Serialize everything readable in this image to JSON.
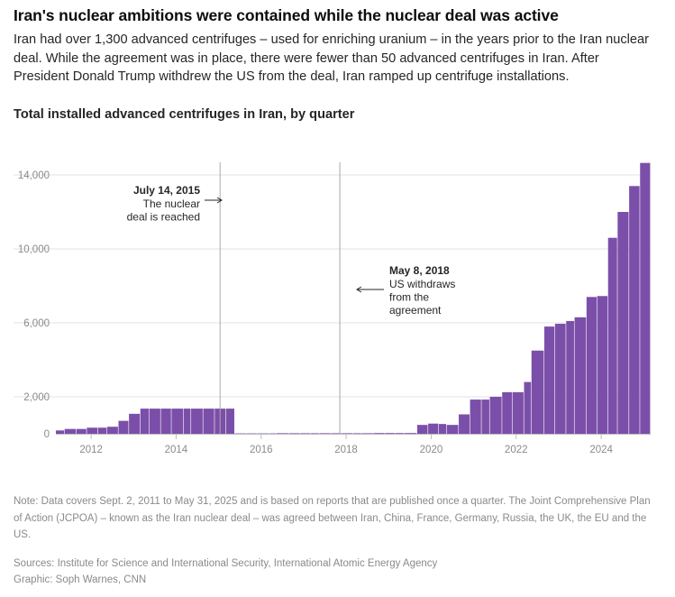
{
  "headline": "Iran's nuclear ambitions were contained while the nuclear deal was active",
  "dek": "Iran had over 1,300 advanced centrifuges – used for enriching uranium – in the years prior to the Iran nuclear deal. While the agreement was in place, there were fewer than 50 advanced centrifuges in Iran. After President Donald Trump withdrew the US from the deal, Iran ramped up centrifuge installations.",
  "chart_title": "Total installed advanced centrifuges in Iran, by quarter",
  "chart_data": {
    "type": "bar",
    "title": "Total installed advanced centrifuges in Iran, by quarter",
    "xlabel": "",
    "ylabel": "",
    "x_ticks": [
      "2012",
      "2014",
      "2016",
      "2018",
      "2020",
      "2022",
      "2024"
    ],
    "y_ticks": [
      "0",
      "2,000",
      "6,000",
      "10,000",
      "14,000"
    ],
    "ylim": [
      0,
      14500
    ],
    "grid": "horizontal",
    "bar_color": "#7b4fa9",
    "series": [
      {
        "x": [
          "2011-09-02",
          "2011-11-16",
          "2012-02-24",
          "2012-05-25",
          "2012-08-30",
          "2012-11-16",
          "2013-02-21",
          "2013-05-22",
          "2013-08-28",
          "2013-11-14",
          "2014-02-20",
          "2014-05-23",
          "2014-09-05",
          "2014-11-07",
          "2015-02-19",
          "2015-05-29",
          "2015-09-03",
          "2015-11-18",
          "2016-02-26",
          "2016-05-27",
          "2016-09-08",
          "2016-11-09",
          "2017-02-24",
          "2017-06-02",
          "2017-08-31",
          "2017-11-13",
          "2018-02-22",
          "2018-05-24",
          "2018-08-30",
          "2018-11-12",
          "2019-02-22",
          "2019-05-31",
          "2019-08-30",
          "2019-11-11",
          "2020-03-03",
          "2020-06-05",
          "2020-09-04",
          "2020-11-11",
          "2021-02-23",
          "2021-05-31",
          "2021-09-07",
          "2021-11-17",
          "2022-03-03",
          "2022-05-30",
          "2022-09-07",
          "2022-11-10",
          "2023-02-28",
          "2023-05-31",
          "2023-09-04",
          "2023-11-15",
          "2024-02-26",
          "2024-05-27",
          "2024-08-29",
          "2024-11-19",
          "2025-02-26",
          "2025-05-31"
        ],
        "values": [
          180,
          260,
          260,
          330,
          330,
          380,
          700,
          1080,
          1360,
          1360,
          1360,
          1360,
          1360,
          1360,
          1360,
          1360,
          1360,
          20,
          20,
          20,
          20,
          30,
          30,
          30,
          30,
          30,
          30,
          30,
          30,
          30,
          40,
          40,
          40,
          40,
          480,
          550,
          530,
          480,
          1050,
          1850,
          1850,
          2000,
          2250,
          2250,
          2800,
          4500,
          5800,
          5950,
          6100,
          6300,
          7400,
          7450,
          10600,
          12000,
          13400,
          14650
        ]
      }
    ],
    "annotations": [
      {
        "date": "2015-07-14",
        "label_date": "July 14, 2015",
        "lines": [
          "The nuclear",
          "deal is reached"
        ],
        "arrow": "right"
      },
      {
        "date": "2018-05-08",
        "label_date": "May 8, 2018",
        "lines": [
          "US withdraws",
          "from the",
          "agreement"
        ],
        "arrow": "left"
      }
    ]
  },
  "note": "Note: Data covers Sept. 2, 2011 to May 31, 2025 and is based on reports that are published once a quarter. The Joint Comprehensive Plan of Action (JCPOA) – known as the Iran nuclear deal – was agreed between Iran, China, France, Germany, Russia, the UK, the EU and the US.",
  "sources": "Sources: Institute for Science and International Security, International Atomic Energy Agency",
  "graphic": "Graphic: Soph Warnes, CNN"
}
